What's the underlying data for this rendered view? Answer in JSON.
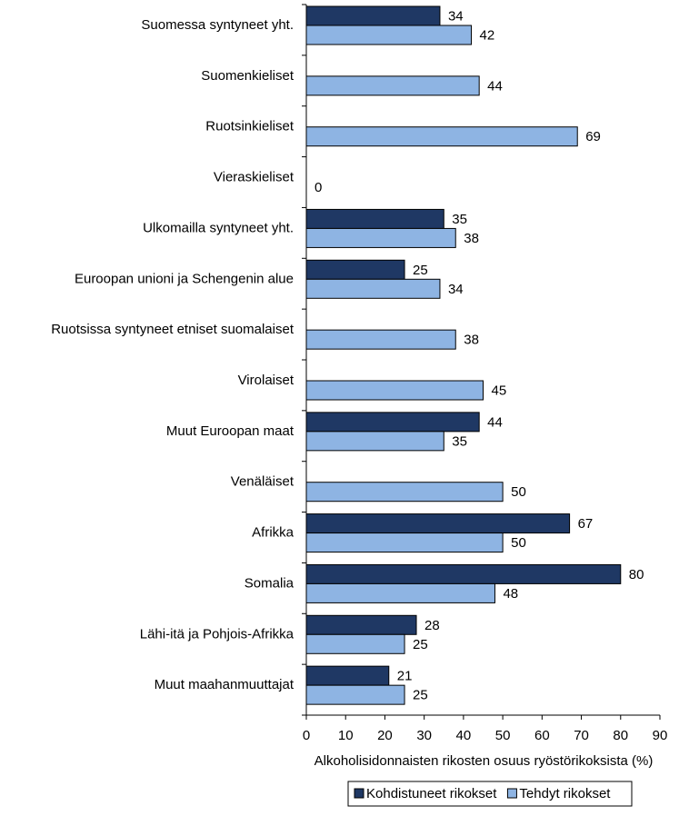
{
  "chart_data": {
    "type": "hbar",
    "categories": [
      "Suomessa syntyneet yht.",
      "Suomenkieliset",
      "Ruotsinkieliset",
      "Vieraskieliset",
      "Ulkomailla syntyneet yht.",
      "Euroopan unioni ja Schengenin alue",
      "Ruotsissa syntyneet etniset suomalaiset",
      "Virolaiset",
      "Muut Euroopan maat",
      "Venäläiset",
      "Afrikka",
      "Somalia",
      "Lähi-itä ja Pohjois-Afrikka",
      "Muut maahanmuuttajat"
    ],
    "series": [
      {
        "name": "Kohdistuneet rikokset",
        "color": "#1f3864",
        "values": [
          34,
          null,
          null,
          null,
          35,
          25,
          null,
          null,
          44,
          null,
          67,
          80,
          28,
          21
        ]
      },
      {
        "name": "Tehdyt rikokset",
        "color": "#8eb4e3",
        "values": [
          42,
          44,
          69,
          0,
          38,
          34,
          38,
          45,
          35,
          50,
          50,
          48,
          25,
          25
        ]
      }
    ],
    "xlabel": "Alkoholisidonnaisten  rikosten osuus ryöstörikoksista (%)",
    "xlim": [
      0,
      90
    ],
    "xticks": [
      0,
      10,
      20,
      30,
      40,
      50,
      60,
      70,
      80,
      90
    ],
    "legend": "bottom"
  }
}
